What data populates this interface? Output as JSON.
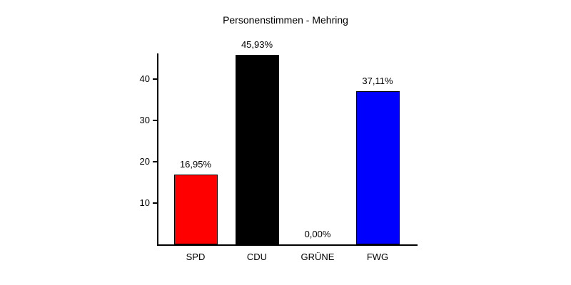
{
  "chart_data": {
    "type": "bar",
    "title": "Personenstimmen - Mehring",
    "categories": [
      "SPD",
      "CDU",
      "GRÜNE",
      "FWG"
    ],
    "values": [
      16.95,
      45.93,
      0,
      37.11
    ],
    "value_labels": [
      "16,95%",
      "45,93%",
      "0,00%",
      "37,11%"
    ],
    "bar_colors": [
      "#ff0000",
      "#000000",
      null,
      "#0000ff"
    ],
    "xlabel": "",
    "ylabel": "",
    "yticks": [
      10,
      20,
      30,
      40
    ],
    "ylim": [
      0,
      46.2
    ],
    "grid": false,
    "legend": false,
    "background_color": "#ffffff",
    "axis_color": "#000000",
    "text_color": "#000000"
  }
}
